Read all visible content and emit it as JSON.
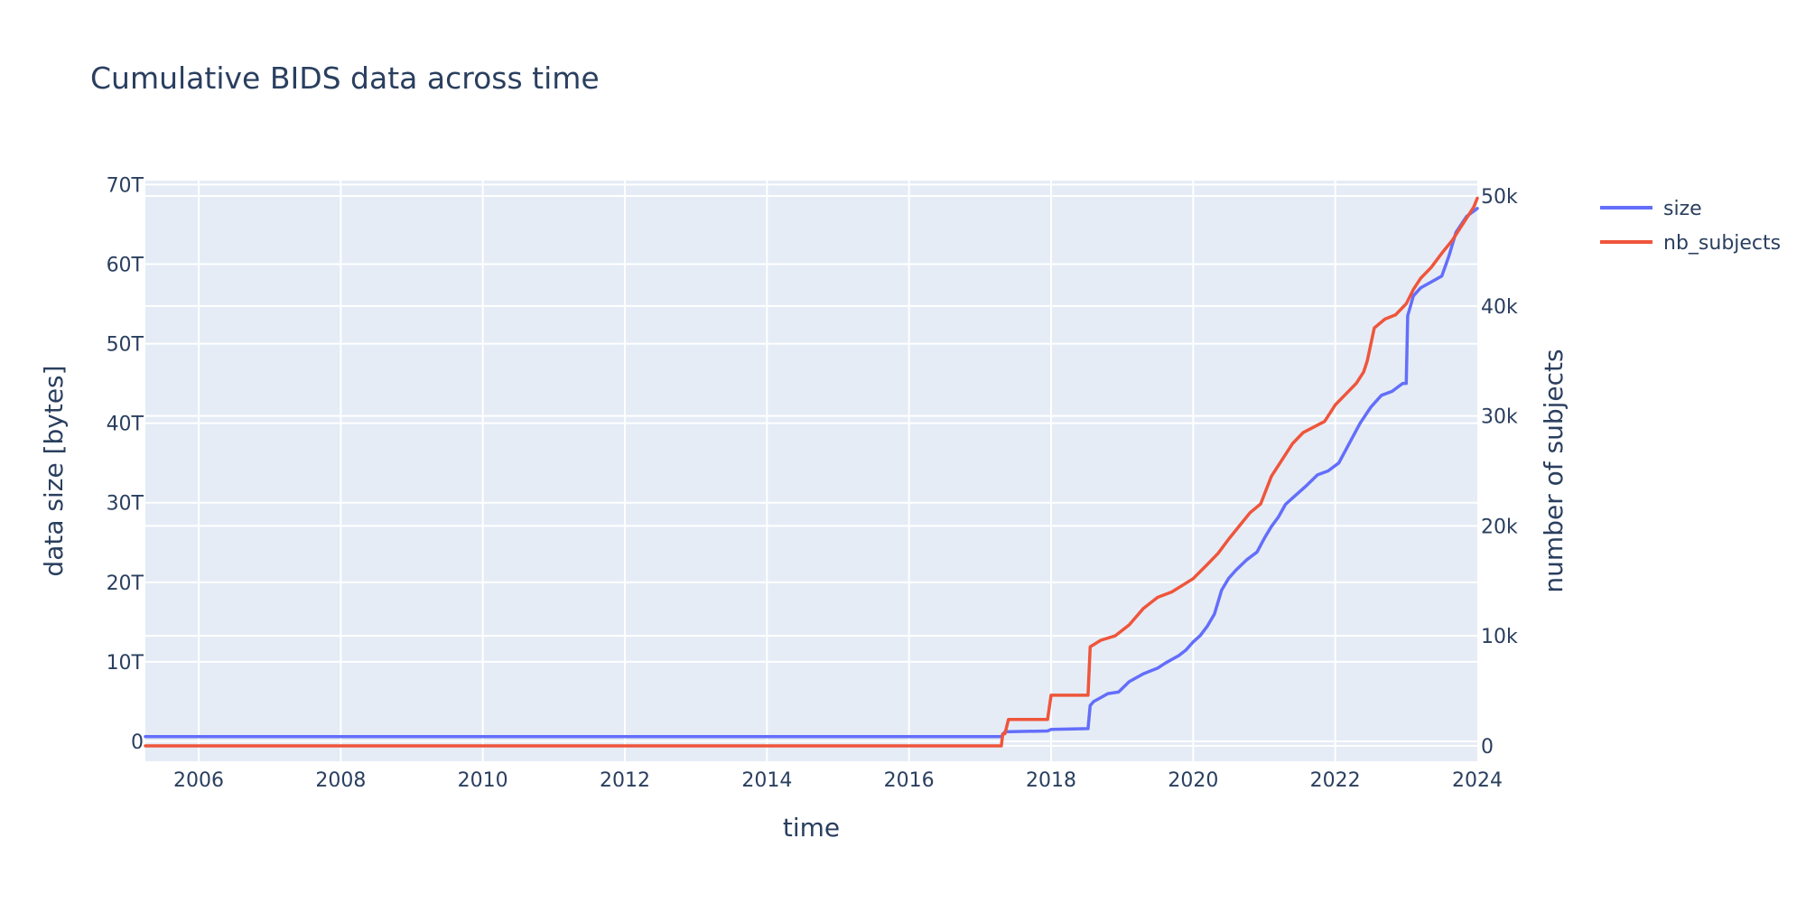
{
  "chart_data": {
    "type": "line",
    "title": "Cumulative BIDS data across time",
    "xlabel": "time",
    "ylabel": "data size [bytes]",
    "y2label": "number of subjects",
    "xlim": [
      2005.25,
      2024.0
    ],
    "ylim": [
      -2.5,
      70.5
    ],
    "y2lim": [
      -1400,
      51400
    ],
    "grid": true,
    "legend_position": "top-right",
    "x_ticks": [
      2006,
      2008,
      2010,
      2012,
      2014,
      2016,
      2018,
      2020,
      2022,
      2024
    ],
    "x_tick_labels": [
      "2006",
      "2008",
      "2010",
      "2012",
      "2014",
      "2016",
      "2018",
      "2020",
      "2022",
      "2024"
    ],
    "y_ticks": [
      0,
      10,
      20,
      30,
      40,
      50,
      60,
      70
    ],
    "y_tick_labels": [
      "0",
      "10T",
      "20T",
      "30T",
      "40T",
      "50T",
      "60T",
      "70T"
    ],
    "y2_ticks": [
      0,
      10000,
      20000,
      30000,
      40000,
      50000
    ],
    "y2_tick_labels": [
      "0",
      "10k",
      "20k",
      "30k",
      "40k",
      "50k"
    ],
    "series": [
      {
        "name": "size",
        "color": "#636efa",
        "axis": "y",
        "unit": "TB",
        "x": [
          2005.25,
          2010.0,
          2015.0,
          2017.3,
          2017.35,
          2017.95,
          2018.0,
          2018.52,
          2018.55,
          2018.6,
          2018.7,
          2018.8,
          2018.95,
          2019.1,
          2019.3,
          2019.5,
          2019.6,
          2019.8,
          2019.9,
          2020.0,
          2020.1,
          2020.2,
          2020.3,
          2020.4,
          2020.5,
          2020.6,
          2020.75,
          2020.9,
          2021.0,
          2021.1,
          2021.2,
          2021.3,
          2021.45,
          2021.6,
          2021.75,
          2021.9,
          2022.05,
          2022.2,
          2022.35,
          2022.5,
          2022.65,
          2022.8,
          2022.95,
          2023.0,
          2023.02,
          2023.1,
          2023.2,
          2023.4,
          2023.5,
          2023.6,
          2023.7,
          2023.85,
          2024.0
        ],
        "y": [
          0.6,
          0.6,
          0.6,
          0.6,
          1.2,
          1.3,
          1.5,
          1.6,
          4.5,
          5.0,
          5.5,
          6.0,
          6.2,
          7.5,
          8.5,
          9.2,
          9.8,
          10.8,
          11.5,
          12.5,
          13.3,
          14.5,
          16.0,
          19.0,
          20.5,
          21.5,
          22.8,
          23.8,
          25.5,
          27.0,
          28.2,
          29.8,
          31.0,
          32.2,
          33.5,
          34.0,
          35.0,
          37.5,
          40.0,
          42.0,
          43.5,
          44.0,
          45.0,
          45.0,
          53.5,
          56.0,
          57.0,
          58.0,
          58.5,
          61.0,
          64.0,
          66.0,
          67.0
        ]
      },
      {
        "name": "nb_subjects",
        "color": "#ef553b",
        "axis": "y2",
        "unit": "subjects",
        "x": [
          2005.25,
          2010.0,
          2015.0,
          2017.3,
          2017.32,
          2017.35,
          2017.4,
          2017.95,
          2018.0,
          2018.52,
          2018.55,
          2018.7,
          2018.9,
          2019.1,
          2019.3,
          2019.5,
          2019.7,
          2019.9,
          2020.0,
          2020.2,
          2020.35,
          2020.5,
          2020.65,
          2020.8,
          2020.95,
          2021.1,
          2021.25,
          2021.4,
          2021.55,
          2021.7,
          2021.85,
          2022.0,
          2022.15,
          2022.3,
          2022.4,
          2022.45,
          2022.55,
          2022.7,
          2022.85,
          2023.0,
          2023.1,
          2023.2,
          2023.35,
          2023.5,
          2023.65,
          2023.8,
          2023.95,
          2024.0
        ],
        "y": [
          0,
          0,
          0,
          0,
          1100,
          1100,
          2400,
          2400,
          4600,
          4600,
          9000,
          9600,
          10000,
          11000,
          12500,
          13500,
          14000,
          14800,
          15200,
          16500,
          17500,
          18800,
          20000,
          21200,
          22000,
          24500,
          26000,
          27500,
          28500,
          29000,
          29500,
          31000,
          32000,
          33000,
          34000,
          35000,
          38000,
          38800,
          39200,
          40200,
          41500,
          42500,
          43500,
          44800,
          46000,
          47500,
          49000,
          49800
        ]
      }
    ]
  }
}
